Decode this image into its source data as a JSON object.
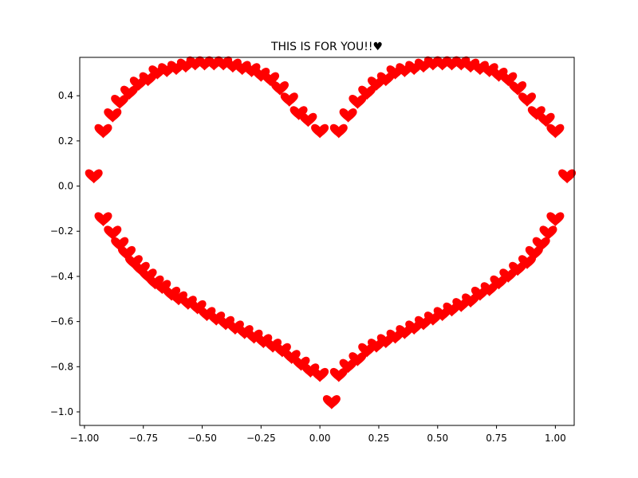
{
  "chart_data": {
    "type": "scatter",
    "title": "THIS IS FOR YOU!!♥",
    "xlabel": "",
    "ylabel": "",
    "xlim": [
      -1.02,
      1.08
    ],
    "ylim": [
      -1.06,
      0.57
    ],
    "x_ticks": [
      -1.0,
      -0.75,
      -0.5,
      -0.25,
      0.0,
      0.25,
      0.5,
      0.75,
      1.0
    ],
    "x_tick_labels": [
      "−1.00",
      "−0.75",
      "−0.50",
      "−0.25",
      "0.00",
      "0.25",
      "0.50",
      "0.75",
      "1.00"
    ],
    "y_ticks": [
      -1.0,
      -0.8,
      -0.6,
      -0.4,
      -0.2,
      0.0,
      0.2,
      0.4
    ],
    "y_tick_labels": [
      "−1.0",
      "−0.8",
      "−0.6",
      "−0.4",
      "−0.2",
      "0.0",
      "0.2",
      "0.4"
    ],
    "grid": false,
    "legend": "none",
    "marker": "heart",
    "marker_color": "#ff0000",
    "series": [
      {
        "x": [
          -0.96,
          -0.92,
          -0.88,
          -0.85,
          -0.81,
          -0.77,
          -0.73,
          -0.69,
          -0.65,
          -0.61,
          -0.57,
          -0.53,
          -0.49,
          -0.45,
          -0.41,
          -0.37,
          -0.33,
          -0.29,
          -0.25,
          -0.21,
          -0.17,
          -0.13,
          -0.09,
          -0.05,
          0.0,
          0.08,
          0.12,
          0.16,
          0.2,
          0.24,
          0.28,
          0.32,
          0.36,
          0.4,
          0.44,
          0.48,
          0.52,
          0.56,
          0.6,
          0.64,
          0.68,
          0.72,
          0.76,
          0.8,
          0.84,
          0.88,
          0.92,
          0.96,
          1.0,
          1.05,
          -0.92,
          -0.88,
          -0.85,
          -0.82,
          -0.79,
          -0.76,
          -0.73,
          -0.7,
          -0.67,
          -0.63,
          -0.6,
          -0.56,
          -0.52,
          -0.48,
          -0.44,
          -0.4,
          -0.36,
          -0.32,
          -0.28,
          -0.24,
          -0.2,
          -0.16,
          -0.12,
          -0.08,
          -0.04,
          0.0,
          0.05,
          0.08,
          0.12,
          0.16,
          0.2,
          0.24,
          0.28,
          0.32,
          0.36,
          0.4,
          0.44,
          0.48,
          0.52,
          0.56,
          0.6,
          0.64,
          0.68,
          0.72,
          0.76,
          0.8,
          0.84,
          0.88,
          0.91,
          0.94,
          0.97,
          1.0
        ],
        "y": [
          0.04,
          0.24,
          0.31,
          0.37,
          0.41,
          0.45,
          0.47,
          0.5,
          0.51,
          0.52,
          0.53,
          0.54,
          0.54,
          0.54,
          0.54,
          0.53,
          0.52,
          0.51,
          0.49,
          0.47,
          0.43,
          0.38,
          0.32,
          0.29,
          0.24,
          0.24,
          0.31,
          0.37,
          0.41,
          0.45,
          0.47,
          0.5,
          0.51,
          0.52,
          0.53,
          0.54,
          0.54,
          0.54,
          0.54,
          0.53,
          0.52,
          0.51,
          0.49,
          0.47,
          0.43,
          0.38,
          0.32,
          0.29,
          0.24,
          0.04,
          -0.15,
          -0.21,
          -0.26,
          -0.3,
          -0.34,
          -0.37,
          -0.4,
          -0.43,
          -0.45,
          -0.48,
          -0.5,
          -0.52,
          -0.54,
          -0.57,
          -0.59,
          -0.61,
          -0.63,
          -0.65,
          -0.67,
          -0.69,
          -0.71,
          -0.73,
          -0.76,
          -0.79,
          -0.82,
          -0.84,
          -0.96,
          -0.84,
          -0.8,
          -0.77,
          -0.73,
          -0.71,
          -0.69,
          -0.67,
          -0.65,
          -0.63,
          -0.61,
          -0.59,
          -0.57,
          -0.55,
          -0.53,
          -0.51,
          -0.48,
          -0.46,
          -0.43,
          -0.4,
          -0.37,
          -0.34,
          -0.3,
          -0.26,
          -0.21,
          -0.15
        ]
      }
    ]
  }
}
